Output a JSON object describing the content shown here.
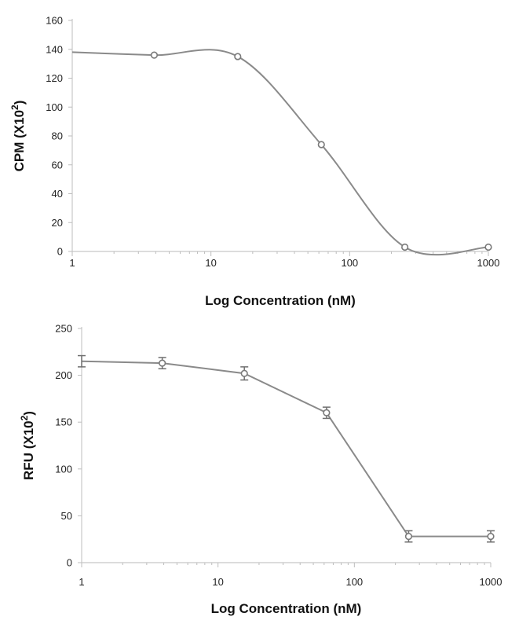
{
  "chart_data": [
    {
      "type": "line",
      "smooth": true,
      "x_scale": "log",
      "xlim": [
        1,
        1000
      ],
      "ylim": [
        0,
        160
      ],
      "x_ticks": [
        "1",
        "10",
        "100",
        "1000"
      ],
      "y_ticks": [
        "0",
        "20",
        "40",
        "60",
        "80",
        "100",
        "120",
        "140",
        "160"
      ],
      "xlabel": "Log Concentration (nM)",
      "ylabel": {
        "main": "CPM (X10",
        "sup": "2",
        "end": ")"
      },
      "grid": false,
      "series": [
        {
          "x": [
            1,
            3.9,
            15.6,
            62.5,
            250,
            1000
          ],
          "y": [
            138,
            136,
            135,
            74,
            3,
            3
          ],
          "marker_at": [
            false,
            true,
            true,
            true,
            true,
            true
          ]
        }
      ]
    },
    {
      "type": "line",
      "smooth": false,
      "x_scale": "log",
      "xlim": [
        1,
        1000
      ],
      "ylim": [
        0,
        250
      ],
      "x_ticks": [
        "1",
        "10",
        "100",
        "1000"
      ],
      "y_ticks": [
        "0",
        "50",
        "100",
        "150",
        "200",
        "250"
      ],
      "xlabel": "Log Concentration (nM)",
      "ylabel": {
        "main": "RFU (X10",
        "sup": "2",
        "end": ")"
      },
      "grid": false,
      "series": [
        {
          "x": [
            1,
            3.9,
            15.6,
            62.5,
            250,
            1000
          ],
          "y": [
            215,
            213,
            202,
            160,
            28,
            28
          ],
          "error": [
            6,
            6,
            7,
            6,
            6,
            6
          ],
          "marker_at": [
            false,
            true,
            true,
            true,
            true,
            true
          ]
        }
      ]
    }
  ]
}
